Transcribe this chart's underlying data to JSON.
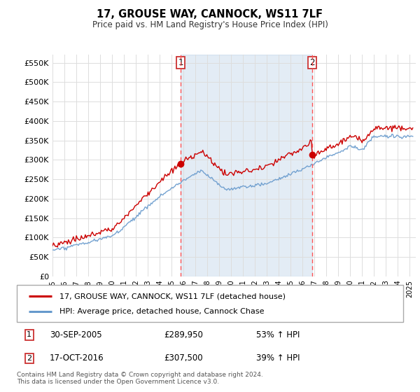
{
  "title": "17, GROUSE WAY, CANNOCK, WS11 7LF",
  "subtitle": "Price paid vs. HM Land Registry's House Price Index (HPI)",
  "background_color": "#ffffff",
  "grid_color": "#dddddd",
  "red_color": "#cc0000",
  "blue_color": "#6699cc",
  "shade_color": "#ddeeff",
  "dashed_color": "#ff5555",
  "ylim_min": 0,
  "ylim_max": 570000,
  "sale1_date": 2005.75,
  "sale1_price": 289950,
  "sale2_date": 2016.79,
  "sale2_price": 307500,
  "legend_line1": "17, GROUSE WAY, CANNOCK, WS11 7LF (detached house)",
  "legend_line2": "HPI: Average price, detached house, Cannock Chase",
  "footnote": "Contains HM Land Registry data © Crown copyright and database right 2024.\nThis data is licensed under the Open Government Licence v3.0.",
  "xmin": 1995.0,
  "xmax": 2025.5,
  "yticks": [
    0,
    50000,
    100000,
    150000,
    200000,
    250000,
    300000,
    350000,
    400000,
    450000,
    500000,
    550000
  ],
  "ytick_labels": [
    "£0",
    "£50K",
    "£100K",
    "£150K",
    "£200K",
    "£250K",
    "£300K",
    "£350K",
    "£400K",
    "£450K",
    "£500K",
    "£550K"
  ],
  "sale1_text": "30-SEP-2005",
  "sale1_amount": "£289,950",
  "sale1_hpi": "53% ↑ HPI",
  "sale2_text": "17-OCT-2016",
  "sale2_amount": "£307,500",
  "sale2_hpi": "39% ↑ HPI"
}
